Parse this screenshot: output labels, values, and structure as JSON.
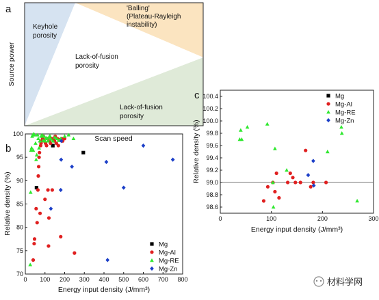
{
  "colors": {
    "mg": "#000000",
    "mg_al": "#e02020",
    "mg_re": "#2ee82e",
    "mg_zn": "#1c3fc8",
    "keyhole_fill": "#d6e3f1",
    "balling_fill": "#fbe4c0",
    "lof_fill": "#dfead8",
    "threshold_line": "#777777"
  },
  "panel_a": {
    "letter": "a",
    "xlabel": "Scan speed",
    "ylabel": "Source power",
    "regions": {
      "keyhole": [
        "Keyhole",
        "porosity"
      ],
      "balling": [
        "'Balling'",
        "(Plateau-Rayleigh",
        "instability)"
      ],
      "lof_center": [
        "Lack-of-fusion",
        "porosity"
      ],
      "lof_bottom": [
        "Lack-of-fusion",
        "porosity"
      ]
    }
  },
  "panel_b": {
    "letter": "b"
  },
  "panel_c": {
    "letter": "c"
  },
  "watermark": "材料学网",
  "chart_data": [
    {
      "type": "scatter",
      "xlabel": "Energy input density (J/mm³)",
      "ylabel": "Relative density (%)",
      "xlim": [
        0,
        800
      ],
      "ylim": [
        70,
        100
      ],
      "xticks": [
        "0",
        "100",
        "200",
        "300",
        "400",
        "500",
        "600",
        "700",
        "800"
      ],
      "yticks": [
        "70",
        "75",
        "80",
        "85",
        "90",
        "95",
        "100"
      ],
      "legend_position": "bottom-right",
      "series": [
        {
          "name": "Mg",
          "marker": "square",
          "points": [
            [
              57,
              88.5
            ],
            [
              140,
              97.5
            ],
            [
              295,
              96
            ]
          ]
        },
        {
          "name": "Mg-Al",
          "marker": "circle",
          "points": [
            [
              40,
              73
            ],
            [
              45,
              76.5
            ],
            [
              47,
              77.5
            ],
            [
              55,
              84
            ],
            [
              60,
              81
            ],
            [
              64,
              88
            ],
            [
              66,
              91
            ],
            [
              68,
              93
            ],
            [
              70,
              95
            ],
            [
              72,
              96
            ],
            [
              75,
              83
            ],
            [
              78,
              97.5
            ],
            [
              80,
              98
            ],
            [
              83,
              98.5
            ],
            [
              88,
              99
            ],
            [
              92,
              99.5
            ],
            [
              96,
              98.5
            ],
            [
              100,
              86
            ],
            [
              103,
              98
            ],
            [
              108,
              97.5
            ],
            [
              112,
              99
            ],
            [
              115,
              88
            ],
            [
              118,
              76
            ],
            [
              120,
              82
            ],
            [
              123,
              98.5
            ],
            [
              128,
              98
            ],
            [
              132,
              99
            ],
            [
              137,
              88
            ],
            [
              142,
              99
            ],
            [
              148,
              98.5
            ],
            [
              152,
              99.5
            ],
            [
              158,
              98
            ],
            [
              163,
              99
            ],
            [
              168,
              97.5
            ],
            [
              173,
              98.8
            ],
            [
              180,
              78
            ],
            [
              186,
              99
            ],
            [
              190,
              98.5
            ],
            [
              200,
              99
            ],
            [
              250,
              74.5
            ]
          ]
        },
        {
          "name": "Mg-RE",
          "marker": "triangle",
          "points": [
            [
              25,
              72
            ],
            [
              27,
              87.5
            ],
            [
              29,
              96.5
            ],
            [
              32,
              97
            ],
            [
              35,
              99.5
            ],
            [
              38,
              99.8
            ],
            [
              40,
              96.5
            ],
            [
              43,
              100
            ],
            [
              47,
              99.8
            ],
            [
              52,
              98
            ],
            [
              55,
              94.5
            ],
            [
              58,
              95.5
            ],
            [
              62,
              99.8
            ],
            [
              66,
              99
            ],
            [
              70,
              97
            ],
            [
              74,
              98.5
            ],
            [
              80,
              99.5
            ],
            [
              85,
              99.8
            ],
            [
              90,
              98.6
            ],
            [
              95,
              99.5
            ],
            [
              100,
              98.5
            ],
            [
              105,
              99.2
            ],
            [
              110,
              99
            ],
            [
              115,
              98.5
            ],
            [
              120,
              99.3
            ],
            [
              125,
              99.6
            ],
            [
              130,
              98.9
            ],
            [
              140,
              98.5
            ],
            [
              150,
              99.3
            ],
            [
              160,
              99
            ],
            [
              170,
              98.6
            ],
            [
              180,
              99
            ],
            [
              200,
              99.5
            ],
            [
              220,
              99.8
            ],
            [
              245,
              99
            ]
          ]
        },
        {
          "name": "Mg-Zn",
          "marker": "diamond",
          "points": [
            [
              130,
              84
            ],
            [
              180,
              88
            ],
            [
              182,
              94.5
            ],
            [
              183,
              98.5
            ],
            [
              237,
              93
            ],
            [
              412,
              94
            ],
            [
              418,
              73
            ],
            [
              500,
              88.5
            ],
            [
              600,
              97.5
            ],
            [
              750,
              94.5
            ]
          ]
        }
      ]
    },
    {
      "type": "scatter",
      "xlabel": "Energy input density (J/mm³)",
      "ylabel": "Relative density (%)",
      "xlim": [
        0,
        300
      ],
      "ylim": [
        98.5,
        100.5
      ],
      "xticks": [
        "0",
        "100",
        "200",
        "300"
      ],
      "yticks": [
        "98.6",
        "98.8",
        "99.0",
        "99.2",
        "99.4",
        "99.6",
        "99.8",
        "100.0",
        "100.2",
        "100.4"
      ],
      "reference_line_y": 99.0,
      "legend_position": "top-right",
      "series": [
        {
          "name": "Mg",
          "marker": "square",
          "points": []
        },
        {
          "name": "Mg-Al",
          "marker": "circle",
          "points": [
            [
              85,
              98.7
            ],
            [
              93,
              98.93
            ],
            [
              103,
              99
            ],
            [
              107,
              98.85
            ],
            [
              110,
              99.15
            ],
            [
              115,
              98.75
            ],
            [
              132,
              99
            ],
            [
              137,
              99.15
            ],
            [
              142,
              99.08
            ],
            [
              147,
              99
            ],
            [
              157,
              99
            ],
            [
              167,
              99.52
            ],
            [
              177,
              98.93
            ],
            [
              182,
              99
            ],
            [
              207,
              99
            ]
          ]
        },
        {
          "name": "Mg-RE",
          "marker": "triangle",
          "points": [
            [
              38,
              99.7
            ],
            [
              40,
              99.85
            ],
            [
              42,
              99.7
            ],
            [
              53,
              99.9
            ],
            [
              92,
              99.95
            ],
            [
              103,
              99.0
            ],
            [
              104,
              98.6
            ],
            [
              107,
              99.55
            ],
            [
              130,
              99.2
            ],
            [
              210,
              99.5
            ],
            [
              237,
              99.9
            ],
            [
              238,
              99.8
            ],
            [
              268,
              98.7
            ]
          ]
        },
        {
          "name": "Mg-Zn",
          "marker": "diamond",
          "points": [
            [
              172,
              99.12
            ],
            [
              182,
              99.35
            ],
            [
              183,
              98.95
            ]
          ]
        }
      ]
    }
  ]
}
